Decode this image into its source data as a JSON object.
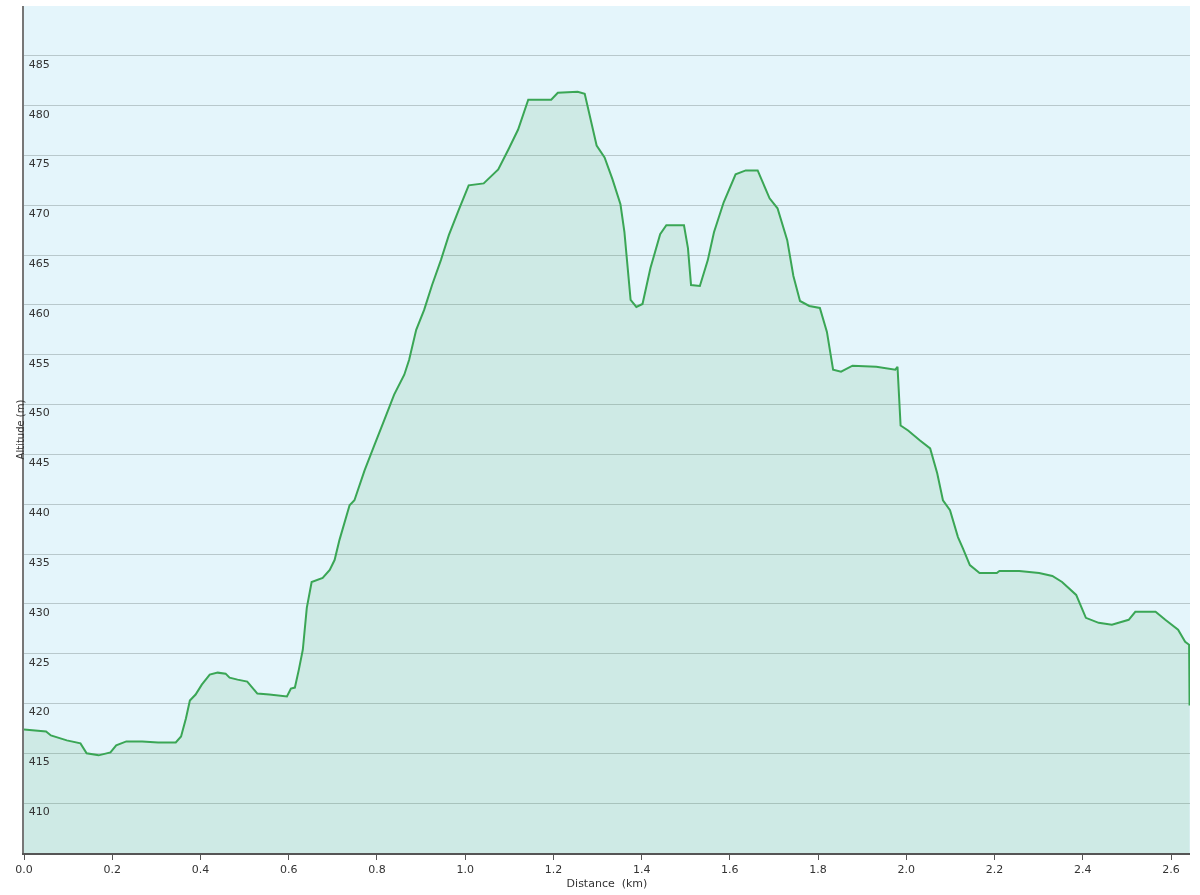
{
  "chart_data": {
    "type": "area",
    "xlabel": "Distance  (km)",
    "ylabel": "Altitude (m)",
    "xlim": [
      0,
      2.643
    ],
    "ylim": [
      405,
      490
    ],
    "xticks": [
      {
        "value": 0,
        "label": "0.0"
      },
      {
        "value": 0.2,
        "label": "0.2"
      },
      {
        "value": 0.4,
        "label": "0.4"
      },
      {
        "value": 0.6,
        "label": "0.6"
      },
      {
        "value": 0.8,
        "label": "0.8"
      },
      {
        "value": 1.0,
        "label": "1.0"
      },
      {
        "value": 1.2,
        "label": "1.2"
      },
      {
        "value": 1.4,
        "label": "1.4"
      },
      {
        "value": 1.6,
        "label": "1.6"
      },
      {
        "value": 1.8,
        "label": "1.8"
      },
      {
        "value": 2.0,
        "label": "2.0"
      },
      {
        "value": 2.2,
        "label": "2.2"
      },
      {
        "value": 2.4,
        "label": "2.4"
      },
      {
        "value": 2.6,
        "label": "2.6"
      }
    ],
    "yticks": [
      410,
      415,
      420,
      425,
      430,
      435,
      440,
      445,
      450,
      455,
      460,
      465,
      470,
      475,
      480,
      485
    ],
    "grid": "y",
    "x": [
      0,
      0.05,
      0.061,
      0.097,
      0.128,
      0.142,
      0.169,
      0.196,
      0.209,
      0.232,
      0.268,
      0.304,
      0.344,
      0.356,
      0.367,
      0.376,
      0.389,
      0.403,
      0.421,
      0.439,
      0.457,
      0.466,
      0.484,
      0.506,
      0.529,
      0.556,
      0.596,
      0.605,
      0.614,
      0.623,
      0.632,
      0.641,
      0.652,
      0.677,
      0.693,
      0.704,
      0.715,
      0.738,
      0.749,
      0.772,
      0.794,
      0.817,
      0.839,
      0.862,
      0.873,
      0.889,
      0.907,
      0.925,
      0.945,
      0.963,
      0.985,
      1.008,
      1.042,
      1.075,
      1.098,
      1.12,
      1.143,
      1.195,
      1.21,
      1.255,
      1.271,
      1.298,
      1.316,
      1.334,
      1.352,
      1.361,
      1.375,
      1.388,
      1.402,
      1.42,
      1.442,
      1.456,
      1.496,
      1.505,
      1.512,
      1.532,
      1.55,
      1.564,
      1.586,
      1.613,
      1.636,
      1.663,
      1.69,
      1.708,
      1.73,
      1.744,
      1.759,
      1.78,
      1.804,
      1.82,
      1.834,
      1.852,
      1.878,
      1.932,
      1.975,
      1.98,
      1.987,
      2.004,
      2.031,
      2.054,
      2.07,
      2.083,
      2.099,
      2.117,
      2.128,
      2.144,
      2.166,
      2.205,
      2.211,
      2.256,
      2.301,
      2.331,
      2.353,
      2.385,
      2.407,
      2.436,
      2.466,
      2.504,
      2.519,
      2.565,
      2.587,
      2.616,
      2.632,
      2.641,
      2.642
    ],
    "series": [
      {
        "color": "#3aa655",
        "values": [
          417.4,
          417.2,
          416.8,
          416.3,
          416.0,
          415.0,
          414.8,
          415.1,
          415.8,
          416.2,
          416.2,
          416.1,
          416.1,
          416.7,
          418.5,
          420.3,
          420.9,
          421.9,
          422.9,
          423.1,
          423.0,
          422.6,
          422.4,
          422.2,
          421.0,
          420.9,
          420.7,
          421.5,
          421.6,
          423.4,
          425.4,
          429.6,
          432.2,
          432.6,
          433.4,
          434.4,
          436.4,
          439.9,
          440.4,
          443.4,
          445.9,
          448.5,
          451.0,
          453.0,
          454.5,
          457.5,
          459.5,
          462.0,
          464.5,
          467.0,
          469.5,
          472.0,
          472.2,
          473.6,
          475.6,
          477.6,
          480.6,
          480.6,
          481.3,
          481.4,
          481.2,
          476.0,
          474.8,
          472.6,
          470.1,
          467.3,
          460.5,
          459.8,
          460.1,
          463.7,
          467.1,
          468.0,
          468.0,
          465.7,
          462.0,
          461.9,
          464.5,
          467.3,
          470.3,
          473.1,
          473.5,
          473.5,
          470.7,
          469.7,
          466.5,
          462.9,
          460.4,
          459.9,
          459.7,
          457.3,
          453.5,
          453.3,
          453.9,
          453.8,
          453.5,
          453.8,
          447.9,
          447.4,
          446.4,
          445.6,
          443.1,
          440.4,
          439.4,
          436.7,
          435.6,
          433.9,
          433.1,
          433.1,
          433.3,
          433.3,
          433.1,
          432.8,
          432.2,
          430.9,
          428.6,
          428.1,
          427.9,
          428.4,
          429.2,
          429.2,
          428.4,
          427.4,
          426.2,
          425.9,
          419.8
        ]
      }
    ]
  }
}
